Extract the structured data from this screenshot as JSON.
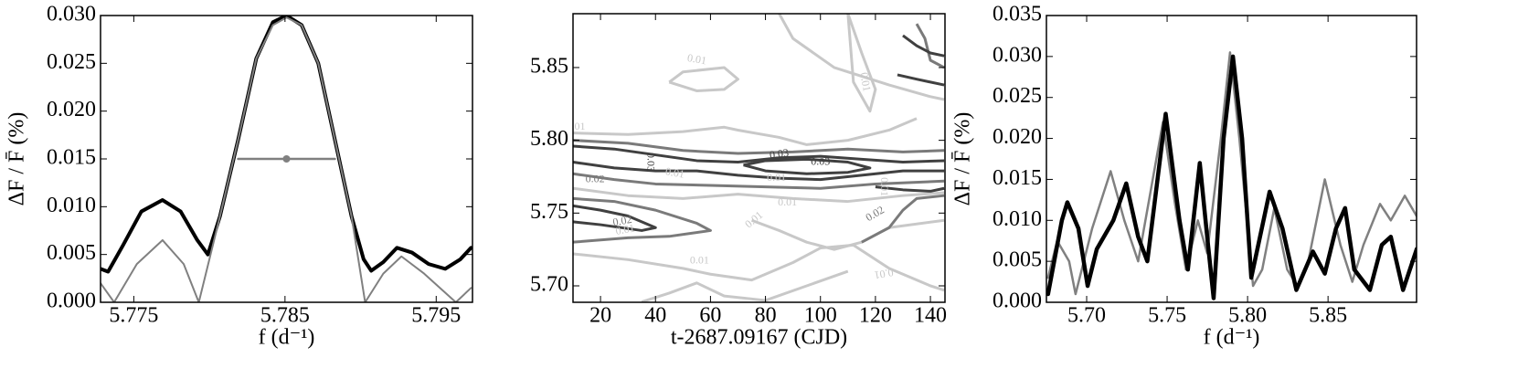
{
  "chart_data": [
    {
      "type": "line",
      "x_label": "f (d⁻¹)",
      "y_label": "ΔF / F̄ (%)",
      "xlim": [
        5.7728,
        5.7974
      ],
      "ylim": [
        0,
        0.03
      ],
      "xticks": [
        5.775,
        5.785,
        5.795
      ],
      "yticks": [
        {
          "value": 0,
          "label": "0.000"
        },
        0.005,
        {
          "value": 0.01,
          "label": "0.010"
        },
        0.015,
        {
          "value": 0.02,
          "label": "0.020"
        },
        0.025,
        {
          "value": 0.03,
          "label": "0.030"
        }
      ],
      "series": [
        {
          "color": "#000000",
          "width": 4,
          "x": [
            5.7728,
            5.7733,
            5.7743,
            5.7755,
            5.7769,
            5.7781,
            5.7792,
            5.7799,
            5.7807,
            5.7819,
            5.7831,
            5.7842,
            5.7851,
            5.7861,
            5.7872,
            5.7883,
            5.7894,
            5.7902,
            5.7907,
            5.7915,
            5.7924,
            5.7934,
            5.7945,
            5.7956,
            5.7966,
            5.7973
          ],
          "values": [
            0.0035,
            0.0032,
            0.006,
            0.0095,
            0.0107,
            0.0095,
            0.0065,
            0.005,
            0.009,
            0.017,
            0.0255,
            0.0293,
            0.03,
            0.029,
            0.025,
            0.017,
            0.009,
            0.0045,
            0.0033,
            0.0042,
            0.0057,
            0.0052,
            0.004,
            0.0035,
            0.0045,
            0.0057
          ]
        },
        {
          "color": "#808080",
          "width": 2,
          "x": [
            5.7728,
            5.7737,
            5.7752,
            5.7769,
            5.7783,
            5.7793,
            5.7807,
            5.7819,
            5.7831,
            5.7842,
            5.7851,
            5.7861,
            5.7872,
            5.7883,
            5.7894,
            5.7903,
            5.7915,
            5.7927,
            5.7942,
            5.7963,
            5.7973
          ],
          "values": [
            0.002,
            0,
            0.004,
            0.0065,
            0.004,
            0,
            0.009,
            0.017,
            0.0255,
            0.029,
            0.0298,
            0.029,
            0.025,
            0.017,
            0.009,
            0,
            0.003,
            0.0048,
            0.003,
            0,
            0.0015
          ]
        },
        {
          "color": "#808080",
          "width": 2.5,
          "marker_at": 1,
          "x": [
            5.7819,
            5.7851,
            5.7883
          ],
          "values": [
            0.015,
            0.015,
            0.015
          ]
        }
      ]
    },
    {
      "type": "contour",
      "x_label": "t-2687.09167 (CJD)",
      "xlim": [
        10,
        145.3
      ],
      "ylim": [
        5.6887,
        5.887
      ],
      "xticks": [
        20,
        40,
        60,
        80,
        100,
        120,
        140
      ],
      "yticks": [
        {
          "value": 5.7,
          "label": "5.70"
        },
        5.75,
        {
          "value": 5.8,
          "label": "5.80"
        },
        5.85
      ],
      "contours": [
        {
          "color": "#c8c8c8",
          "x": [
            10,
            30,
            50,
            65,
            70,
            85,
            95,
            110,
            125,
            135
          ],
          "y": [
            5.805,
            5.804,
            5.806,
            5.809,
            5.807,
            5.802,
            5.797,
            5.8,
            5.807,
            5.815
          ]
        },
        {
          "color": "#c8c8c8",
          "x": [
            45,
            55,
            65,
            70,
            65,
            50,
            45
          ],
          "y": [
            5.84,
            5.834,
            5.835,
            5.842,
            5.85,
            5.847,
            5.84
          ]
        },
        {
          "color": "#c8c8c8",
          "x": [
            110,
            115,
            120,
            118,
            112,
            110
          ],
          "y": [
            5.887,
            5.86,
            5.835,
            5.82,
            5.84,
            5.887
          ]
        },
        {
          "color": "#c8c8c8",
          "x": [
            10,
            30,
            50,
            70,
            90,
            110,
            130,
            145
          ],
          "y": [
            5.767,
            5.762,
            5.76,
            5.763,
            5.76,
            5.758,
            5.762,
            5.764
          ]
        },
        {
          "color": "#c8c8c8",
          "x": [
            10,
            30,
            50,
            60,
            75,
            90,
            100,
            112,
            125,
            140,
            145
          ],
          "y": [
            5.722,
            5.718,
            5.712,
            5.708,
            5.704,
            5.716,
            5.726,
            5.728,
            5.712,
            5.7,
            5.697
          ]
        },
        {
          "color": "#c8c8c8",
          "x": [
            35,
            45,
            55,
            65,
            80,
            95,
            110
          ],
          "y": [
            5.689,
            5.695,
            5.702,
            5.693,
            5.69,
            5.7,
            5.71
          ]
        },
        {
          "color": "#c8c8c8",
          "x": [
            85,
            90,
            105,
            125,
            140,
            145
          ],
          "y": [
            5.887,
            5.87,
            5.85,
            5.838,
            5.83,
            5.828
          ]
        },
        {
          "color": "#c8c8c8",
          "x": [
            75,
            85,
            95,
            105,
            115,
            125,
            145
          ],
          "y": [
            5.745,
            5.738,
            5.73,
            5.725,
            5.73,
            5.74,
            5.745
          ]
        },
        {
          "color": "#7a7a7a",
          "x": [
            10,
            30,
            50,
            70,
            90,
            110,
            130,
            145
          ],
          "y": [
            5.8,
            5.798,
            5.793,
            5.791,
            5.792,
            5.794,
            5.792,
            5.793
          ]
        },
        {
          "color": "#7a7a7a",
          "x": [
            10,
            25,
            40,
            60,
            80,
            100,
            120,
            145
          ],
          "y": [
            5.777,
            5.773,
            5.77,
            5.769,
            5.768,
            5.767,
            5.77,
            5.772
          ]
        },
        {
          "color": "#7a7a7a",
          "x": [
            10,
            25,
            40,
            55,
            60,
            45,
            30,
            10
          ],
          "y": [
            5.76,
            5.758,
            5.752,
            5.743,
            5.738,
            5.734,
            5.733,
            5.73
          ]
        },
        {
          "color": "#7a7a7a",
          "x": [
            115,
            125,
            130,
            135,
            145
          ],
          "y": [
            5.73,
            5.74,
            5.752,
            5.76,
            5.762
          ]
        },
        {
          "color": "#7a7a7a",
          "x": [
            135,
            138,
            140,
            145
          ],
          "y": [
            5.88,
            5.87,
            5.855,
            5.85
          ]
        },
        {
          "color": "#404040",
          "x": [
            10,
            25,
            40,
            55,
            70,
            85,
            100,
            115,
            130,
            145
          ],
          "y": [
            5.796,
            5.794,
            5.79,
            5.786,
            5.785,
            5.788,
            5.789,
            5.787,
            5.785,
            5.786
          ]
        },
        {
          "color": "#404040",
          "x": [
            10,
            25,
            40,
            55,
            70,
            85,
            100,
            115,
            130,
            145
          ],
          "y": [
            5.785,
            5.781,
            5.779,
            5.779,
            5.776,
            5.774,
            5.773,
            5.776,
            5.779,
            5.779
          ]
        },
        {
          "color": "#404040",
          "x": [
            72,
            80,
            95,
            110,
            118,
            110,
            95,
            80,
            72
          ],
          "y": [
            5.783,
            5.786,
            5.787,
            5.785,
            5.781,
            5.778,
            5.777,
            5.779,
            5.783
          ]
        },
        {
          "color": "#404040",
          "x": [
            10,
            20,
            30,
            40,
            35,
            20,
            10
          ],
          "y": [
            5.755,
            5.752,
            5.748,
            5.74,
            5.738,
            5.742,
            5.744
          ]
        },
        {
          "color": "#404040",
          "x": [
            130,
            135,
            140,
            145
          ],
          "y": [
            5.872,
            5.865,
            5.86,
            5.858
          ]
        },
        {
          "color": "#404040",
          "x": [
            128,
            135,
            145
          ],
          "y": [
            5.845,
            5.842,
            5.838
          ]
        },
        {
          "color": "#404040",
          "x": [
            120,
            130,
            140,
            145
          ],
          "y": [
            5.768,
            5.766,
            5.765,
            5.767
          ]
        }
      ],
      "contour_labels": [
        {
          "text": "0.03",
          "x": 85,
          "y": 5.79,
          "angle": -8,
          "color": "#404040"
        },
        {
          "text": "0.03",
          "x": 100,
          "y": 5.785,
          "angle": 0,
          "color": "#404040"
        },
        {
          "text": "0.03",
          "x": 38,
          "y": 5.785,
          "angle": 90,
          "color": "#404040"
        },
        {
          "text": "0.02",
          "x": 18,
          "y": 5.773,
          "angle": 0,
          "color": "#7a7a7a"
        },
        {
          "text": "0.01",
          "x": 47,
          "y": 5.777,
          "angle": 10,
          "color": "#c8c8c8"
        },
        {
          "text": "0.01",
          "x": 11,
          "y": 5.809,
          "angle": 0,
          "color": "#c8c8c8"
        },
        {
          "text": "0.01",
          "x": 55,
          "y": 5.855,
          "angle": 10,
          "color": "#c8c8c8"
        },
        {
          "text": "0.01",
          "x": 116,
          "y": 5.84,
          "angle": 80,
          "color": "#c8c8c8"
        },
        {
          "text": "0.01",
          "x": 84,
          "y": 5.774,
          "angle": 0,
          "color": "#c8c8c8"
        },
        {
          "text": "0.01",
          "x": 88,
          "y": 5.757,
          "angle": 0,
          "color": "#c8c8c8"
        },
        {
          "text": "0.01",
          "x": 76,
          "y": 5.745,
          "angle": -40,
          "color": "#c8c8c8"
        },
        {
          "text": "0.02",
          "x": 28,
          "y": 5.744,
          "angle": -10,
          "color": "#7a7a7a"
        },
        {
          "text": "0.01",
          "x": 29,
          "y": 5.738,
          "angle": -10,
          "color": "#c8c8c8"
        },
        {
          "text": "0.02",
          "x": 120,
          "y": 5.749,
          "angle": -30,
          "color": "#7a7a7a"
        },
        {
          "text": "0.01",
          "x": 123,
          "y": 5.768,
          "angle": 90,
          "color": "#c8c8c8"
        },
        {
          "text": "0.01",
          "x": 56,
          "y": 5.717,
          "angle": 0,
          "color": "#c8c8c8"
        },
        {
          "text": "0.01",
          "x": 123,
          "y": 5.709,
          "angle": 170,
          "color": "#c8c8c8"
        }
      ]
    },
    {
      "type": "line",
      "x_label": "f (d⁻¹)",
      "y_label": "ΔF / F̄ (%)",
      "xlim": [
        5.675,
        5.905
      ],
      "ylim": [
        0,
        0.035
      ],
      "xticks": [
        {
          "value": 5.7,
          "label": "5.70"
        },
        5.75,
        {
          "value": 5.8,
          "label": "5.80"
        },
        5.85
      ],
      "yticks": [
        {
          "value": 0,
          "label": "0.000"
        },
        0.005,
        {
          "value": 0.01,
          "label": "0.010"
        },
        0.015,
        {
          "value": 0.02,
          "label": "0.020"
        },
        0.025,
        {
          "value": 0.03,
          "label": "0.030"
        },
        0.035
      ],
      "series": [
        {
          "color": "#808080",
          "width": 2.5,
          "x": [
            5.676,
            5.6817,
            5.6891,
            5.6931,
            5.7034,
            5.7149,
            5.7234,
            5.732,
            5.7474,
            5.7549,
            5.7617,
            5.7691,
            5.7749,
            5.7834,
            5.7891,
            5.7949,
            5.8034,
            5.8091,
            5.8166,
            5.8246,
            5.8309,
            5.8377,
            5.848,
            5.8577,
            5.8651,
            5.872,
            5.8823,
            5.889,
            5.8977,
            5.9051
          ],
          "values": [
            0.003,
            0.0075,
            0.005,
            0.001,
            0.009,
            0.016,
            0.01,
            0.005,
            0.022,
            0.012,
            0.004,
            0.01,
            0.006,
            0.02,
            0.0305,
            0.02,
            0.002,
            0.004,
            0.0115,
            0.004,
            0.002,
            0.005,
            0.015,
            0.007,
            0.0025,
            0.007,
            0.012,
            0.01,
            0.013,
            0.0105
          ]
        },
        {
          "color": "#000000",
          "width": 4.5,
          "x": [
            5.676,
            5.6846,
            5.688,
            5.6949,
            5.7006,
            5.7063,
            5.7166,
            5.7246,
            5.732,
            5.7377,
            5.7491,
            5.7577,
            5.7629,
            5.7703,
            5.7749,
            5.7789,
            5.7851,
            5.7909,
            5.7966,
            5.8023,
            5.8137,
            5.8217,
            5.8303,
            5.8406,
            5.848,
            5.8549,
            5.8606,
            5.8663,
            5.876,
            5.8834,
            5.889,
            5.8966,
            5.9051
          ],
          "values": [
            0.001,
            0.01,
            0.0122,
            0.009,
            0.002,
            0.0065,
            0.01,
            0.0145,
            0.008,
            0.005,
            0.023,
            0.01,
            0.004,
            0.017,
            0.008,
            0.0005,
            0.02,
            0.03,
            0.02,
            0.003,
            0.0135,
            0.009,
            0.0015,
            0.0062,
            0.0035,
            0.009,
            0.0115,
            0.004,
            0.0015,
            0.007,
            0.008,
            0.0015,
            0.0065
          ]
        }
      ]
    }
  ]
}
